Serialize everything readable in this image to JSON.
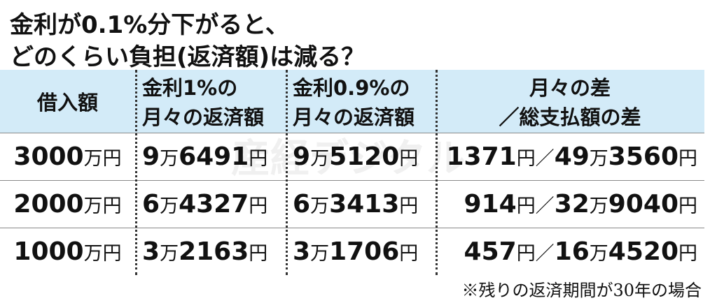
{
  "title": [
    "金利が0.1%分下がると、",
    "どのくらい負担(返済額)は減る？"
  ],
  "watermark": "産経デジタル",
  "table": {
    "header": [
      [
        "借入額"
      ],
      [
        "金利1%の",
        "月々の返済額"
      ],
      [
        "金利0.9%の",
        "月々の返済額"
      ],
      [
        "月々の差",
        "／総支払額の差"
      ]
    ],
    "rows": [
      [
        "3000万円",
        "9万6491円",
        "9万5120円",
        "1371円／49万3560円"
      ],
      [
        "2000万円",
        "6万4327円",
        "6万3413円",
        "914円／32万9040円"
      ],
      [
        "1000万円",
        "3万2163円",
        "3万1706円",
        "457円／16万4520円"
      ]
    ]
  },
  "footnote": "※残りの返済期間が30年の場合"
}
